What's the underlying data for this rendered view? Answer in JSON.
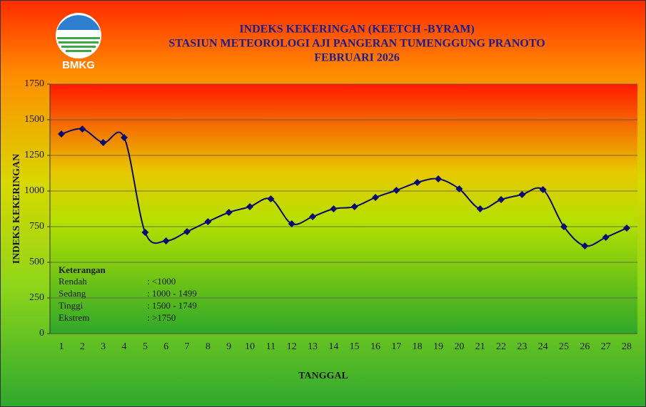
{
  "logo_text": "BMKG",
  "chart_data": {
    "type": "line",
    "title": [
      "INDEKS KEKERINGAN (KEETCH  -BYRAM)",
      "STASIUN METEOROLOGI AJI PANGERAN TUMENGGUNG PRANOTO",
      "FEBRUARI 2026"
    ],
    "x_label": "TANGGAL",
    "y_label": "INDEKS KEKERINGAN",
    "categories": [
      "1",
      "2",
      "3",
      "4",
      "5",
      "6",
      "7",
      "8",
      "9",
      "10",
      "11",
      "12",
      "13",
      "14",
      "15",
      "16",
      "17",
      "18",
      "19",
      "20",
      "21",
      "22",
      "23",
      "24",
      "25",
      "26",
      "27",
      "28"
    ],
    "values": [
      1400,
      1435,
      1340,
      1375,
      710,
      650,
      715,
      785,
      850,
      890,
      945,
      770,
      820,
      875,
      890,
      955,
      1005,
      1060,
      1085,
      1015,
      875,
      940,
      975,
      1010,
      750,
      615,
      675,
      740
    ],
    "color": "#0a0a6e",
    "smooth": true,
    "grid": true,
    "ylim": [
      0,
      1750
    ],
    "yticks": [
      0,
      250,
      500,
      750,
      1000,
      1250,
      1500,
      1750
    ],
    "legend_note": {
      "title": "Keterangan",
      "rows": [
        {
          "label": "Rendah",
          "range": ": <1000"
        },
        {
          "label": "Sedang",
          "range": ": 1000 - 1499"
        },
        {
          "label": "Tinggi",
          "range": ": 1500 - 1749"
        },
        {
          "label": "Ekstrem",
          "range": ": >1750"
        }
      ]
    }
  }
}
